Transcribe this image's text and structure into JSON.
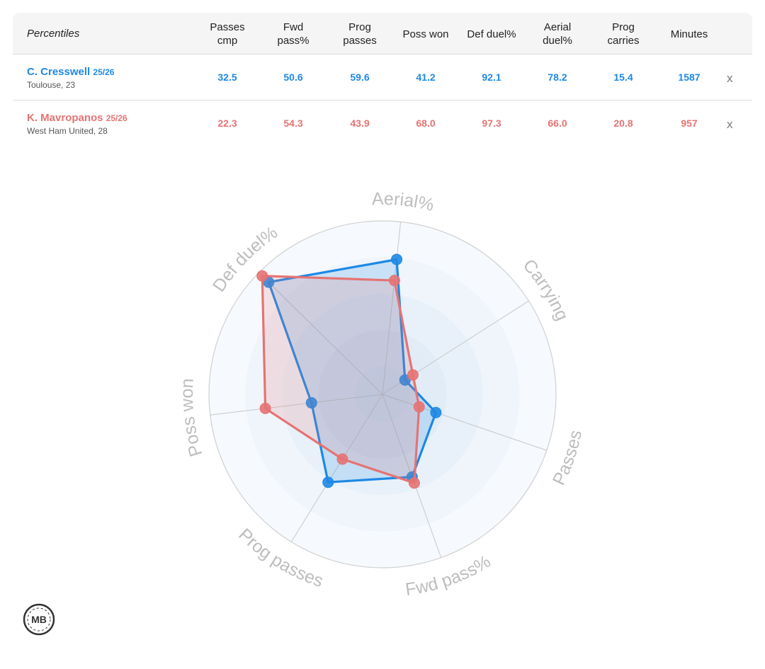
{
  "table": {
    "title": "Percentiles",
    "columns": [
      "Passes\ncmp",
      "Fwd\npass%",
      "Prog\npasses",
      "Poss won",
      "Def duel%",
      "Aerial\nduel%",
      "Prog\ncarries",
      "Minutes"
    ],
    "remove_label": "x"
  },
  "players": [
    {
      "name": "C. Cresswell",
      "season": "25/26",
      "club_age": "Toulouse, 23",
      "values": [
        "32.5",
        "50.6",
        "59.6",
        "41.2",
        "92.1",
        "78.2",
        "15.4",
        "1587"
      ],
      "color": "#1e88e5"
    },
    {
      "name": "K. Mavropanos",
      "season": "25/26",
      "club_age": "West Ham United, 28",
      "values": [
        "22.3",
        "54.3",
        "43.9",
        "68.0",
        "97.3",
        "66.0",
        "20.8",
        "957"
      ],
      "color": "#e57373"
    }
  ],
  "chart_data": {
    "type": "radar",
    "axes": [
      "Aerial%",
      "Carrying",
      "Passes",
      "Fwd pass%",
      "Prog passes",
      "Poss won",
      "Def duel%"
    ],
    "range": [
      0,
      100
    ],
    "series": [
      {
        "name": "C. Cresswell",
        "color": "#1e88e5",
        "values": [
          78.2,
          15.4,
          32.5,
          50.6,
          59.6,
          41.2,
          92.1
        ]
      },
      {
        "name": "K. Mavropanos",
        "color": "#e57373",
        "values": [
          66.0,
          20.8,
          22.3,
          54.3,
          43.9,
          68.0,
          97.3
        ]
      }
    ]
  },
  "logo": {
    "text": "MB"
  }
}
